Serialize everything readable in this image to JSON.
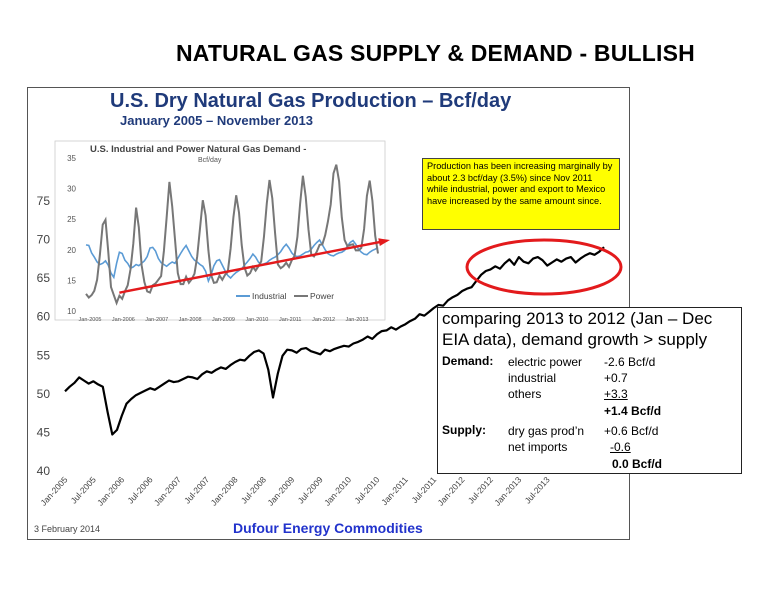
{
  "slide": {
    "title": "NATURAL GAS SUPPLY & DEMAND - BULLISH"
  },
  "main_chart": {
    "title": "U.S. Dry Natural Gas Production – Bcf/day",
    "subtitle": "January 2005 – November 2013",
    "footer_date": "3 February 2014",
    "footer_brand": "Dufour Energy Commodities",
    "annotation": "Production has been increasing marginally by about 2.3 bcf/day (3.5%) since Nov 2011 while industrial, power and export to Mexico have increased by the same amount since."
  },
  "inset_chart": {
    "title": "U.S. Industrial and Power Natural Gas Demand -",
    "unit": "Bcf/day",
    "legend": [
      "Industrial",
      "Power"
    ]
  },
  "comparison": {
    "lead": "comparing 2013 to 2012 (Jan – Dec EIA data), demand growth > supply",
    "demand_label": "Demand:",
    "supply_label": "Supply:",
    "demand_rows": [
      {
        "item": "electric power",
        "value": "-2.6 Bcf/d"
      },
      {
        "item": "industrial",
        "value": "+0.7"
      },
      {
        "item": "others",
        "value": "+3.3"
      }
    ],
    "demand_total": "+1.4 Bcf/d",
    "supply_rows": [
      {
        "item": "dry gas prod’n",
        "value": "+0.6 Bcf/d"
      },
      {
        "item": "net imports",
        "value": "-0.6"
      }
    ],
    "supply_total": "0.0 Bcf/d"
  },
  "colors": {
    "title_blue": "#1f3a7a",
    "brand_blue": "#2233cc",
    "industrial": "#5b9bd5",
    "power": "#777777",
    "trend": "#e31a1c",
    "highlight": "#e31a1c",
    "annotation_bg": "#ffff00"
  },
  "chart_data": [
    {
      "type": "line",
      "title": "U.S. Dry Natural Gas Production – Bcf/day",
      "subtitle": "January 2005 – November 2013",
      "ylim": [
        40,
        75
      ],
      "yticks": [
        40,
        45,
        50,
        55,
        60,
        65,
        70,
        75
      ],
      "xticks": [
        "Jan-2005",
        "Jul-2005",
        "Jan-2006",
        "Jul-2006",
        "Jan-2007",
        "Jul-2007",
        "Jan-2008",
        "Jul-2008",
        "Jan-2009",
        "Jul-2009",
        "Jan-2010",
        "Jul-2010",
        "Jan-2011",
        "Jul-2011",
        "Jan-2012",
        "Jul-2012",
        "Jan-2013",
        "Jul-2013"
      ],
      "series": [
        {
          "values": [
            50.2,
            50.8,
            51.3,
            52.0,
            51.6,
            51.2,
            51.5,
            51.1,
            50.8,
            47.5,
            44.6,
            45.2,
            47.0,
            48.6,
            49.2,
            49.7,
            50.0,
            50.3,
            50.6,
            50.4,
            50.8,
            51.2,
            51.6,
            51.4,
            51.5,
            51.8,
            52.1,
            52.0,
            51.8,
            52.4,
            52.8,
            52.6,
            53.0,
            53.3,
            53.1,
            53.6,
            54.0,
            54.3,
            54.2,
            54.8,
            55.3,
            55.5,
            55.1,
            53.0,
            49.4,
            52.5,
            54.8,
            55.6,
            55.5,
            55.2,
            55.7,
            55.8,
            55.4,
            55.2,
            55.0,
            55.6,
            55.4,
            55.7,
            55.9,
            56.1,
            56.0,
            56.4,
            56.6,
            56.9,
            57.3,
            57.0,
            57.6,
            58.0,
            58.1,
            58.5,
            58.2,
            58.6,
            58.9,
            59.3,
            59.6,
            60.2,
            60.0,
            60.5,
            61.0,
            61.4,
            61.3,
            62.0,
            62.4,
            62.7,
            63.2,
            63.5,
            63.7,
            64.5,
            65.3,
            65.8,
            66.0,
            66.4,
            66.1,
            66.8,
            67.3,
            66.6,
            67.6,
            67.0,
            66.8,
            67.4,
            67.6,
            67.2,
            66.5,
            66.9,
            67.3,
            67.0,
            67.4,
            67.6,
            66.9,
            67.4,
            67.8,
            68.1,
            67.9,
            68.3,
            68.9
          ]
        }
      ]
    },
    {
      "type": "line",
      "title": "U.S. Industrial and Power Natural Gas Demand -",
      "ylabel": "Bcf/day",
      "ylim": [
        10,
        35
      ],
      "yticks": [
        10,
        15,
        20,
        25,
        30,
        35
      ],
      "xticks": [
        "Jan-2005",
        "Jan-2006",
        "Jan-2007",
        "Jan-2008",
        "Jan-2009",
        "Jan-2010",
        "Jan-2011",
        "Jan-2012",
        "Jan-2013"
      ],
      "series": [
        {
          "name": "Industrial",
          "values": [
            20.8,
            20.7,
            19.5,
            18.8,
            18.0,
            17.6,
            17.8,
            18.2,
            17.5,
            16.2,
            15.5,
            17.8,
            19.6,
            19.4,
            18.3,
            17.8,
            17.0,
            17.2,
            17.6,
            17.4,
            17.8,
            18.2,
            18.9,
            20.3,
            20.4,
            19.8,
            18.6,
            17.9,
            17.6,
            17.3,
            17.7,
            18.0,
            17.8,
            18.6,
            19.4,
            20.1,
            20.7,
            19.8,
            18.9,
            18.3,
            18.0,
            17.6,
            17.3,
            16.5,
            14.9,
            15.9,
            17.4,
            18.2,
            18.4,
            17.5,
            16.6,
            15.8,
            15.4,
            15.9,
            16.3,
            16.6,
            16.9,
            17.5,
            18.0,
            18.6,
            19.3,
            18.8,
            18.0,
            17.6,
            17.7,
            17.9,
            18.3,
            18.6,
            18.8,
            19.2,
            19.7,
            20.4,
            20.9,
            20.3,
            19.5,
            19.0,
            18.9,
            19.0,
            19.3,
            19.6,
            19.7,
            20.1,
            20.7,
            21.2,
            21.6,
            20.8,
            20.0,
            19.4,
            19.1,
            19.0,
            19.3,
            19.5,
            19.6,
            19.9,
            20.6,
            21.2,
            21.5,
            20.9,
            20.1,
            19.6,
            19.3,
            19.2,
            19.6,
            19.9,
            20.1,
            20.4
          ]
        },
        {
          "name": "Power",
          "values": [
            12.8,
            12.2,
            12.6,
            13.3,
            15.1,
            19.2,
            24.1,
            24.9,
            19.8,
            13.9,
            12.6,
            11.3,
            12.5,
            12.0,
            13.2,
            14.2,
            16.8,
            21.0,
            26.9,
            23.7,
            17.5,
            14.7,
            13.2,
            13.0,
            14.2,
            14.5,
            15.1,
            15.7,
            19.8,
            25.2,
            31.1,
            27.1,
            21.7,
            16.2,
            14.4,
            14.4,
            15.6,
            14.6,
            15.2,
            16.1,
            18.9,
            23.5,
            28.1,
            25.6,
            19.9,
            15.9,
            14.6,
            14.7,
            15.8,
            15.1,
            15.9,
            16.4,
            20.2,
            25.3,
            28.9,
            26.1,
            20.8,
            17.1,
            15.8,
            16.2,
            17.2,
            16.6,
            17.3,
            18.1,
            22.2,
            27.6,
            31.4,
            28.4,
            22.7,
            17.6,
            17.0,
            17.3,
            17.9,
            17.2,
            18.3,
            19.0,
            22.1,
            27.5,
            32.1,
            28.7,
            23.3,
            19.2,
            18.9,
            19.7,
            20.8,
            20.9,
            22.4,
            24.6,
            27.4,
            32.5,
            33.9,
            31.2,
            25.3,
            21.6,
            20.6,
            20.8,
            20.9,
            19.9,
            19.9,
            20.3,
            23.4,
            28.8,
            31.3,
            28.0,
            22.3,
            19.4
          ]
        }
      ],
      "trend": {
        "from": [
          2006.0,
          13.0
        ],
        "to": [
          2013.9,
          21.5
        ]
      }
    }
  ]
}
